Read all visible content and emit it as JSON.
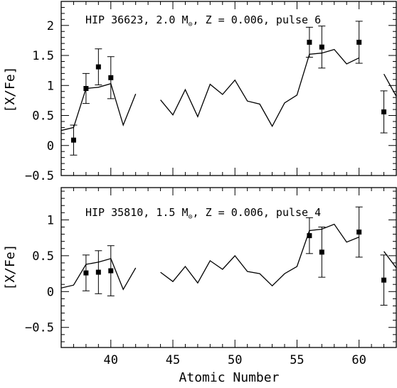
{
  "chart_data": [
    {
      "type": "line",
      "title_parts": [
        "HIP 36623, 2.0 M",
        "⊙",
        ", Z = 0.006, pulse 6"
      ],
      "xlabel": "",
      "ylabel": "[X/Fe]",
      "xlim": [
        36,
        63
      ],
      "ylim": [
        -0.5,
        2.4
      ],
      "xticks": [
        40,
        45,
        50,
        55,
        60
      ],
      "xtick_labels_shown": false,
      "yticks": [
        -0.5,
        0,
        0.5,
        1,
        1.5,
        2
      ],
      "ytick_labels": [
        "−0.5",
        "0",
        "0.5",
        "1",
        "1.5",
        "2"
      ],
      "model_segments": [
        [
          [
            36,
            0.25
          ],
          [
            37,
            0.3
          ],
          [
            38,
            0.95
          ],
          [
            39,
            0.97
          ],
          [
            40,
            1.03
          ],
          [
            41,
            0.34
          ],
          [
            42,
            0.86
          ]
        ],
        [
          [
            44,
            0.76
          ],
          [
            45,
            0.51
          ],
          [
            46,
            0.93
          ],
          [
            47,
            0.48
          ],
          [
            48,
            1.02
          ],
          [
            49,
            0.85
          ],
          [
            50,
            1.09
          ],
          [
            51,
            0.74
          ],
          [
            52,
            0.69
          ],
          [
            53,
            0.32
          ],
          [
            54,
            0.71
          ],
          [
            55,
            0.84
          ],
          [
            56,
            1.52
          ],
          [
            57,
            1.54
          ],
          [
            58,
            1.6
          ],
          [
            59,
            1.36
          ],
          [
            60,
            1.46
          ]
        ],
        [
          [
            62,
            1.19
          ],
          [
            63,
            0.82
          ]
        ]
      ],
      "observations": [
        {
          "x": 37,
          "y": 0.09,
          "err": 0.25
        },
        {
          "x": 38,
          "y": 0.95,
          "err": 0.25
        },
        {
          "x": 39,
          "y": 1.31,
          "err": 0.3
        },
        {
          "x": 40,
          "y": 1.13,
          "err": 0.35
        },
        {
          "x": 56,
          "y": 1.72,
          "err": 0.25
        },
        {
          "x": 57,
          "y": 1.64,
          "err": 0.35
        },
        {
          "x": 60,
          "y": 1.72,
          "err": 0.35
        },
        {
          "x": 62,
          "y": 0.56,
          "err": 0.35
        }
      ]
    },
    {
      "type": "line",
      "title_parts": [
        "HIP 35810, 1.5 M",
        "⊙",
        ", Z = 0.006, pulse 4"
      ],
      "xlabel": "Atomic Number",
      "ylabel": "[X/Fe]",
      "xlim": [
        36,
        63
      ],
      "ylim": [
        -0.78,
        1.45
      ],
      "xticks": [
        40,
        45,
        50,
        55,
        60
      ],
      "xtick_labels_shown": true,
      "xtick_labels": [
        "40",
        "45",
        "50",
        "55",
        "60"
      ],
      "yticks": [
        -0.5,
        0,
        0.5,
        1
      ],
      "ytick_labels": [
        "−0.5",
        "0",
        "0.5",
        "1"
      ],
      "model_segments": [
        [
          [
            36,
            0.05
          ],
          [
            37,
            0.09
          ],
          [
            38,
            0.38
          ],
          [
            39,
            0.41
          ],
          [
            40,
            0.46
          ],
          [
            41,
            0.03
          ],
          [
            42,
            0.33
          ]
        ],
        [
          [
            44,
            0.27
          ],
          [
            45,
            0.14
          ],
          [
            46,
            0.35
          ],
          [
            47,
            0.12
          ],
          [
            48,
            0.43
          ],
          [
            49,
            0.31
          ],
          [
            50,
            0.5
          ],
          [
            51,
            0.28
          ],
          [
            52,
            0.25
          ],
          [
            53,
            0.08
          ],
          [
            54,
            0.25
          ],
          [
            55,
            0.35
          ],
          [
            56,
            0.85
          ],
          [
            57,
            0.87
          ],
          [
            58,
            0.94
          ],
          [
            59,
            0.69
          ],
          [
            60,
            0.76
          ]
        ],
        [
          [
            62,
            0.56
          ],
          [
            63,
            0.33
          ]
        ]
      ],
      "observations": [
        {
          "x": 38,
          "y": 0.26,
          "err": 0.25
        },
        {
          "x": 39,
          "y": 0.27,
          "err": 0.3
        },
        {
          "x": 40,
          "y": 0.29,
          "err": 0.35
        },
        {
          "x": 56,
          "y": 0.78,
          "err": 0.25
        },
        {
          "x": 57,
          "y": 0.55,
          "err": 0.35
        },
        {
          "x": 60,
          "y": 0.83,
          "err": 0.35
        },
        {
          "x": 62,
          "y": 0.16,
          "err": 0.35
        }
      ]
    }
  ]
}
